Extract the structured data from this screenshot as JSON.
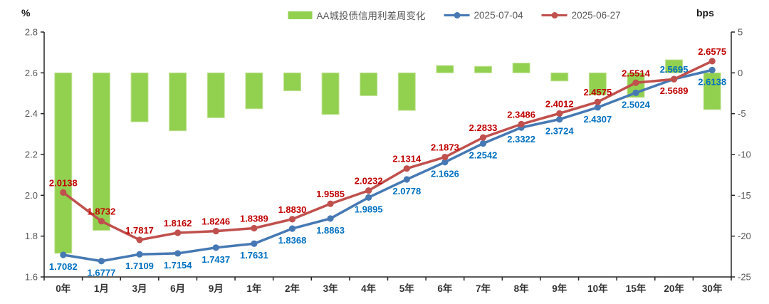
{
  "chart_data": {
    "type": "combo-bar-line",
    "left_axis": {
      "label": "%",
      "min": 1.6,
      "max": 2.8,
      "ticks": [
        "2.8",
        "2.6",
        "2.4",
        "2.2",
        "2.0",
        "1.8",
        "1.6"
      ]
    },
    "right_axis": {
      "label": "bps",
      "min": -25,
      "max": 5,
      "ticks": [
        "5",
        "0",
        "-5",
        "-10",
        "-15",
        "-20",
        "-25"
      ]
    },
    "categories": [
      "0年",
      "1月",
      "3月",
      "6月",
      "9月",
      "1年",
      "2年",
      "3年",
      "4年",
      "5年",
      "6年",
      "7年",
      "8年",
      "9年",
      "10年",
      "15年",
      "20年",
      "30年"
    ],
    "bar_series": {
      "name": "AA城投债信用利差周变化",
      "axis": "right",
      "color": "#92D050",
      "border_color": "#C6E39B",
      "values": [
        -22.1,
        -19.3,
        -6.0,
        -7.1,
        -5.5,
        -4.4,
        -2.2,
        -5.1,
        -2.8,
        -4.6,
        0.9,
        0.8,
        1.2,
        -1.0,
        -2.7,
        -3.0,
        1.6,
        -4.5
      ]
    },
    "line_series": [
      {
        "name": "2025-07-04",
        "axis": "left",
        "color": "#4679B4",
        "label_color": "#0070C0",
        "label_side": "below",
        "label_overrides": {
          "16": "above"
        },
        "values": [
          1.7082,
          1.6777,
          1.7109,
          1.7154,
          1.7437,
          1.7631,
          1.8368,
          1.8863,
          1.9895,
          2.0778,
          2.1626,
          2.2542,
          2.3322,
          2.3724,
          2.4307,
          2.5024,
          2.5695,
          2.6138
        ]
      },
      {
        "name": "2025-06-27",
        "axis": "left",
        "color": "#C0504D",
        "label_color": "#C00000",
        "label_side": "above",
        "label_overrides": {
          "16": "below"
        },
        "values": [
          2.0138,
          1.8732,
          1.7817,
          1.8162,
          1.8246,
          1.8389,
          1.883,
          1.9585,
          2.0232,
          2.1314,
          2.1873,
          2.2833,
          2.3486,
          2.4012,
          2.4575,
          2.5514,
          2.5689,
          2.6575
        ]
      }
    ],
    "legend": [
      {
        "label": "AA城投债信用利差周变化",
        "type": "bar",
        "color": "#92D050"
      },
      {
        "label": "2025-07-04",
        "type": "line",
        "color": "#4679B4"
      },
      {
        "label": "2025-06-27",
        "type": "line",
        "color": "#C0504D"
      }
    ],
    "label_decimals": 4,
    "grid": false,
    "axis_color": "#262626",
    "background": "#FFFFFF"
  }
}
